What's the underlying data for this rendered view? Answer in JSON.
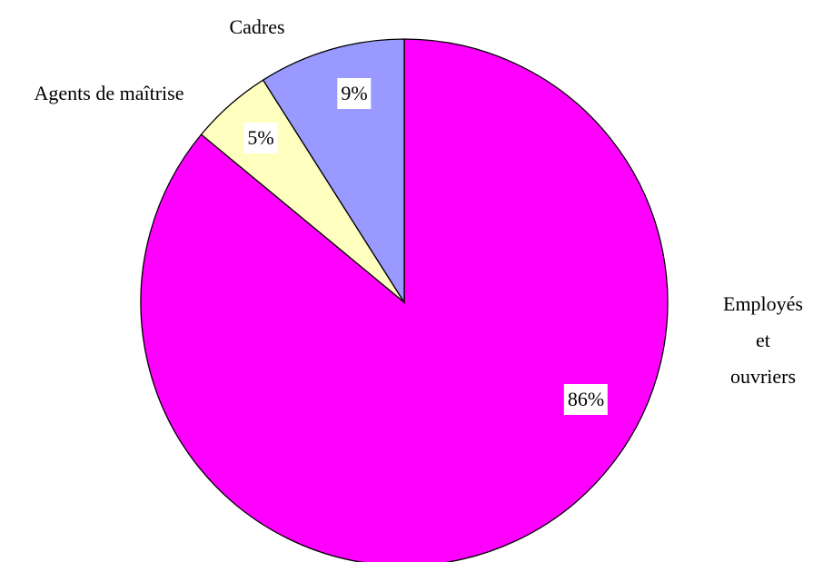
{
  "chart_data": {
    "type": "pie",
    "categories": [
      "Employés\net ouvriers",
      "Agents de maîtrise",
      "Cadres"
    ],
    "values": [
      86,
      5,
      9
    ],
    "value_labels": [
      "86%",
      "5%",
      "9%"
    ],
    "colors": [
      "#ff00ff",
      "#ffffc0",
      "#9999ff"
    ]
  }
}
